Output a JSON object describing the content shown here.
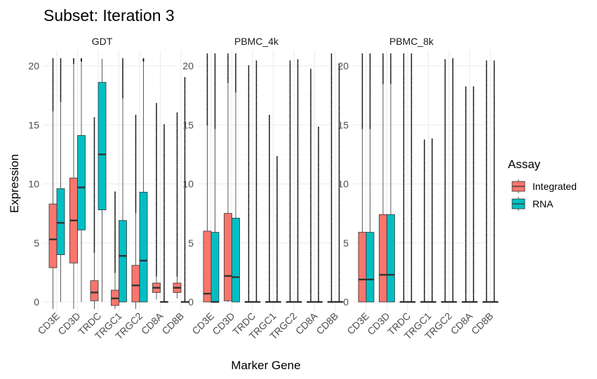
{
  "chart_data": {
    "type": "boxplot",
    "title": "Subset: Iteration 3",
    "xlabel": "Marker Gene",
    "ylabel": "Expression",
    "ylim": [
      -0.8,
      21
    ],
    "yticks": [
      0,
      5,
      10,
      15,
      20
    ],
    "categories": [
      "CD3E",
      "CD3D",
      "TRDC",
      "TRGC1",
      "TRGC2",
      "CD8A",
      "CD8B"
    ],
    "legend": {
      "title": "Assay",
      "placement": "right",
      "items": [
        {
          "name": "Integrated",
          "color": "#F8766D"
        },
        {
          "name": "RNA",
          "color": "#00BFC4"
        }
      ]
    },
    "facets": [
      {
        "name": "GDT",
        "boxes": [
          {
            "gene": "CD3E",
            "assay": "Integrated",
            "q1": 2.9,
            "median": 5.3,
            "q3": 8.3,
            "lo": -0.6,
            "hi": 16.2,
            "omax": 20.6
          },
          {
            "gene": "CD3E",
            "assay": "RNA",
            "q1": 4.0,
            "median": 6.7,
            "q3": 9.6,
            "lo": 0.0,
            "hi": 17.0,
            "omax": 20.6
          },
          {
            "gene": "CD3D",
            "assay": "Integrated",
            "q1": 3.3,
            "median": 6.9,
            "q3": 10.5,
            "lo": -0.6,
            "hi": 20.2,
            "omax": 20.6
          },
          {
            "gene": "CD3D",
            "assay": "RNA",
            "q1": 6.1,
            "median": 9.7,
            "q3": 14.1,
            "lo": 0.0,
            "hi": 20.4,
            "omax": 20.6
          },
          {
            "gene": "TRDC",
            "assay": "Integrated",
            "q1": 0.1,
            "median": 0.8,
            "q3": 1.8,
            "lo": -0.6,
            "hi": 4.2,
            "omax": 15.6
          },
          {
            "gene": "TRDC",
            "assay": "RNA",
            "q1": 7.8,
            "median": 12.5,
            "q3": 18.6,
            "lo": 0.0,
            "hi": 20.6,
            "omax": 20.6
          },
          {
            "gene": "TRGC1",
            "assay": "Integrated",
            "q1": -0.3,
            "median": 0.3,
            "q3": 1.0,
            "lo": -0.6,
            "hi": 2.5,
            "omax": 9.3
          },
          {
            "gene": "TRGC1",
            "assay": "RNA",
            "q1": 0.0,
            "median": 3.9,
            "q3": 6.9,
            "lo": 0.0,
            "hi": 17.3,
            "omax": 20.6
          },
          {
            "gene": "TRGC2",
            "assay": "Integrated",
            "q1": 0.0,
            "median": 1.4,
            "q3": 3.1,
            "lo": -0.6,
            "hi": 7.6,
            "omax": 15.8
          },
          {
            "gene": "TRGC2",
            "assay": "RNA",
            "q1": 0.0,
            "median": 3.5,
            "q3": 9.3,
            "lo": 0.0,
            "hi": 20.4,
            "omax": 20.6
          },
          {
            "gene": "CD8A",
            "assay": "Integrated",
            "q1": 0.8,
            "median": 1.2,
            "q3": 1.6,
            "lo": 0.2,
            "hi": 2.2,
            "omax": 16.8
          },
          {
            "gene": "CD8A",
            "assay": "RNA",
            "q1": 0.0,
            "median": 0.0,
            "q3": 0.0,
            "lo": 0.0,
            "hi": 0.0,
            "omax": 15.0
          },
          {
            "gene": "CD8B",
            "assay": "Integrated",
            "q1": 0.8,
            "median": 1.2,
            "q3": 1.6,
            "lo": 0.3,
            "hi": 2.2,
            "omax": 16.0
          },
          {
            "gene": "CD8B",
            "assay": "RNA",
            "q1": 0.0,
            "median": 0.0,
            "q3": 0.0,
            "lo": 0.0,
            "hi": 0.0,
            "omax": 19.0
          }
        ]
      },
      {
        "name": "PBMC_4k",
        "boxes": [
          {
            "gene": "CD3E",
            "assay": "Integrated",
            "q1": 0.0,
            "median": 0.7,
            "q3": 6.0,
            "lo": 0.0,
            "hi": 15.0,
            "omax": 21.0
          },
          {
            "gene": "CD3E",
            "assay": "RNA",
            "q1": 0.0,
            "median": 0.0,
            "q3": 5.9,
            "lo": 0.0,
            "hi": 14.7,
            "omax": 21.0
          },
          {
            "gene": "CD3D",
            "assay": "Integrated",
            "q1": 0.1,
            "median": 2.2,
            "q3": 7.5,
            "lo": 0.0,
            "hi": 18.6,
            "omax": 21.0
          },
          {
            "gene": "CD3D",
            "assay": "RNA",
            "q1": 0.0,
            "median": 2.1,
            "q3": 7.1,
            "lo": 0.0,
            "hi": 17.8,
            "omax": 21.0
          },
          {
            "gene": "TRDC",
            "assay": "Integrated",
            "q1": 0.0,
            "median": 0.0,
            "q3": 0.0,
            "lo": 0.0,
            "hi": 0.0,
            "omax": 20.0
          },
          {
            "gene": "TRDC",
            "assay": "RNA",
            "q1": 0.0,
            "median": 0.0,
            "q3": 0.0,
            "lo": 0.0,
            "hi": 0.0,
            "omax": 20.4
          },
          {
            "gene": "TRGC1",
            "assay": "Integrated",
            "q1": 0.0,
            "median": 0.0,
            "q3": 0.0,
            "lo": 0.0,
            "hi": 0.0,
            "omax": 15.8
          },
          {
            "gene": "TRGC1",
            "assay": "RNA",
            "q1": 0.0,
            "median": 0.0,
            "q3": 0.0,
            "lo": 0.0,
            "hi": 0.0,
            "omax": 12.3
          },
          {
            "gene": "TRGC2",
            "assay": "Integrated",
            "q1": 0.0,
            "median": 0.0,
            "q3": 0.0,
            "lo": 0.0,
            "hi": 0.0,
            "omax": 20.4
          },
          {
            "gene": "TRGC2",
            "assay": "RNA",
            "q1": 0.0,
            "median": 0.0,
            "q3": 0.0,
            "lo": 0.0,
            "hi": 0.0,
            "omax": 20.5
          },
          {
            "gene": "CD8A",
            "assay": "Integrated",
            "q1": 0.0,
            "median": 0.0,
            "q3": 0.0,
            "lo": 0.0,
            "hi": 0.0,
            "omax": 19.7
          },
          {
            "gene": "CD8A",
            "assay": "RNA",
            "q1": 0.0,
            "median": 0.0,
            "q3": 0.0,
            "lo": 0.0,
            "hi": 0.0,
            "omax": 14.8
          },
          {
            "gene": "CD8B",
            "assay": "Integrated",
            "q1": 0.0,
            "median": 0.0,
            "q3": 0.0,
            "lo": 0.0,
            "hi": 0.0,
            "omax": 21.0
          },
          {
            "gene": "CD8B",
            "assay": "RNA",
            "q1": 0.0,
            "median": 0.0,
            "q3": 0.0,
            "lo": 0.0,
            "hi": 0.0,
            "omax": 20.1
          }
        ]
      },
      {
        "name": "PBMC_8k",
        "boxes": [
          {
            "gene": "CD3E",
            "assay": "Integrated",
            "q1": 0.0,
            "median": 1.9,
            "q3": 5.9,
            "lo": 0.0,
            "hi": 14.7,
            "omax": 21.0
          },
          {
            "gene": "CD3E",
            "assay": "RNA",
            "q1": 0.0,
            "median": 1.9,
            "q3": 5.9,
            "lo": 0.0,
            "hi": 14.7,
            "omax": 21.0
          },
          {
            "gene": "CD3D",
            "assay": "Integrated",
            "q1": 0.0,
            "median": 2.3,
            "q3": 7.4,
            "lo": 0.0,
            "hi": 18.5,
            "omax": 21.0
          },
          {
            "gene": "CD3D",
            "assay": "RNA",
            "q1": 0.0,
            "median": 2.3,
            "q3": 7.4,
            "lo": 0.0,
            "hi": 18.5,
            "omax": 21.0
          },
          {
            "gene": "TRDC",
            "assay": "Integrated",
            "q1": 0.0,
            "median": 0.0,
            "q3": 0.0,
            "lo": 0.0,
            "hi": 0.0,
            "omax": 21.0
          },
          {
            "gene": "TRDC",
            "assay": "RNA",
            "q1": 0.0,
            "median": 0.0,
            "q3": 0.0,
            "lo": 0.0,
            "hi": 0.0,
            "omax": 21.0
          },
          {
            "gene": "TRGC1",
            "assay": "Integrated",
            "q1": 0.0,
            "median": 0.0,
            "q3": 0.0,
            "lo": 0.0,
            "hi": 0.0,
            "omax": 13.7
          },
          {
            "gene": "TRGC1",
            "assay": "RNA",
            "q1": 0.0,
            "median": 0.0,
            "q3": 0.0,
            "lo": 0.0,
            "hi": 0.0,
            "omax": 13.8
          },
          {
            "gene": "TRGC2",
            "assay": "Integrated",
            "q1": 0.0,
            "median": 0.0,
            "q3": 0.0,
            "lo": 0.0,
            "hi": 0.0,
            "omax": 20.5
          },
          {
            "gene": "TRGC2",
            "assay": "RNA",
            "q1": 0.0,
            "median": 0.0,
            "q3": 0.0,
            "lo": 0.0,
            "hi": 0.0,
            "omax": 20.6
          },
          {
            "gene": "CD8A",
            "assay": "Integrated",
            "q1": 0.0,
            "median": 0.0,
            "q3": 0.0,
            "lo": 0.0,
            "hi": 0.0,
            "omax": 18.2
          },
          {
            "gene": "CD8A",
            "assay": "RNA",
            "q1": 0.0,
            "median": 0.0,
            "q3": 0.0,
            "lo": 0.0,
            "hi": 0.0,
            "omax": 18.2
          },
          {
            "gene": "CD8B",
            "assay": "Integrated",
            "q1": 0.0,
            "median": 0.0,
            "q3": 0.0,
            "lo": 0.0,
            "hi": 0.0,
            "omax": 20.4
          },
          {
            "gene": "CD8B",
            "assay": "RNA",
            "q1": 0.0,
            "median": 0.0,
            "q3": 0.0,
            "lo": 0.0,
            "hi": 0.0,
            "omax": 20.4
          }
        ]
      }
    ]
  }
}
